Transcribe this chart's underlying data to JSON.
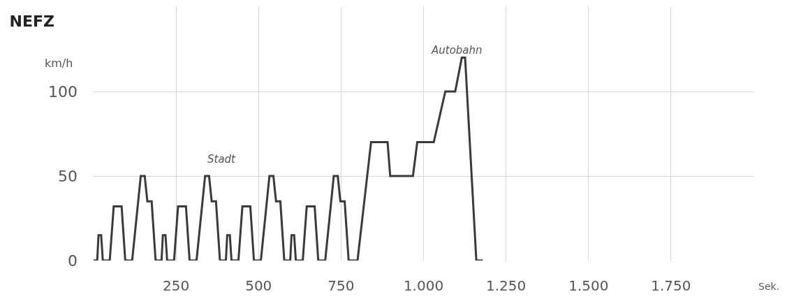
{
  "chart_data": {
    "type": "line",
    "title": "NEFZ",
    "ylabel": "km/h",
    "xlabel": "Sek.",
    "x": [
      0,
      11,
      15,
      23,
      28,
      49,
      61,
      85,
      96,
      117,
      143,
      155,
      163,
      176,
      188,
      195,
      206,
      210,
      218,
      223,
      244,
      256,
      280,
      291,
      312,
      338,
      350,
      358,
      371,
      383,
      390,
      401,
      405,
      413,
      418,
      439,
      451,
      475,
      486,
      507,
      533,
      545,
      553,
      566,
      578,
      585,
      596,
      600,
      608,
      613,
      634,
      646,
      670,
      681,
      702,
      728,
      740,
      748,
      761,
      773,
      780,
      800,
      841,
      891,
      899,
      968,
      981,
      1031,
      1066,
      1096,
      1116,
      1126,
      1160,
      1180
    ],
    "series": [
      {
        "color": "#3a3a3a",
        "values": [
          0,
          0,
          15,
          15,
          0,
          0,
          32,
          32,
          0,
          0,
          50,
          50,
          35,
          35,
          0,
          0,
          0,
          15,
          15,
          0,
          0,
          32,
          32,
          0,
          0,
          50,
          50,
          35,
          35,
          0,
          0,
          0,
          15,
          15,
          0,
          0,
          32,
          32,
          0,
          0,
          50,
          50,
          35,
          35,
          0,
          0,
          0,
          15,
          15,
          0,
          0,
          32,
          32,
          0,
          0,
          50,
          50,
          35,
          35,
          0,
          0,
          0,
          70,
          70,
          50,
          50,
          70,
          70,
          100,
          100,
          120,
          120,
          0,
          0
        ]
      }
    ],
    "xlim": [
      0,
      2000
    ],
    "ylim": [
      0,
      150
    ],
    "xticks": [
      {
        "value": 250,
        "label": "250"
      },
      {
        "value": 500,
        "label": "500"
      },
      {
        "value": 750,
        "label": "750"
      },
      {
        "value": 1000,
        "label": "1.000"
      },
      {
        "value": 1250,
        "label": "1.250"
      },
      {
        "value": 1500,
        "label": "1.500"
      },
      {
        "value": 1750,
        "label": "1.750"
      }
    ],
    "yticks": [
      0,
      50,
      100
    ],
    "grid": true,
    "marker": "none",
    "line_style": "solid",
    "annotations": [
      "Stadt",
      "Autobahn"
    ]
  }
}
